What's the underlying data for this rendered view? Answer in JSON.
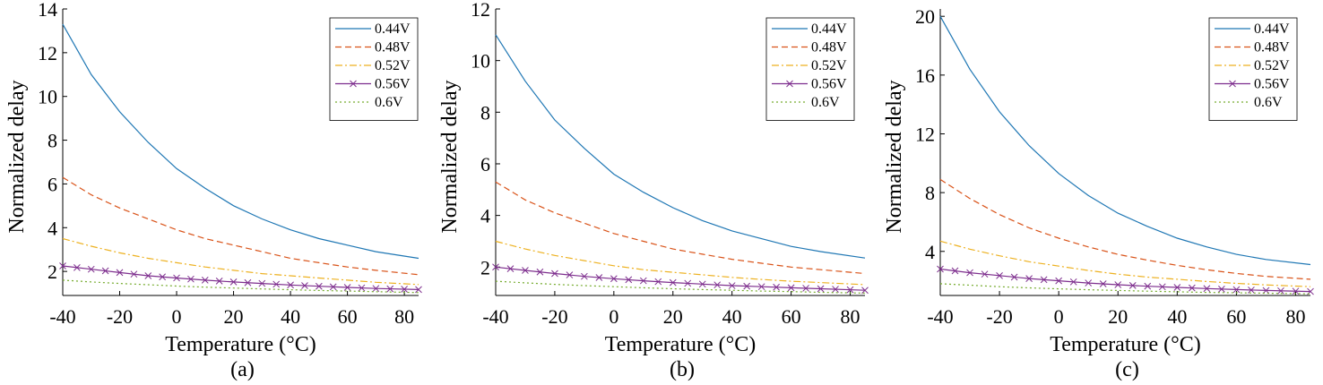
{
  "chart_data": [
    {
      "type": "line",
      "caption": "(a)",
      "xlabel": "Temperature (°C)",
      "ylabel": "Normalized delay",
      "xlim": [
        -40,
        85
      ],
      "ylim": [
        0.9,
        14
      ],
      "xticks": [
        -40,
        -20,
        0,
        20,
        40,
        60,
        80
      ],
      "yticks": [
        2,
        4,
        6,
        8,
        10,
        12,
        14
      ],
      "legend_position": "top-right",
      "x": [
        -40,
        -30,
        -20,
        -10,
        0,
        10,
        20,
        30,
        40,
        50,
        60,
        70,
        85
      ],
      "series": [
        {
          "name": "0.44V",
          "color": "#1f77b4",
          "style": "solid",
          "marker": "",
          "values": [
            13.3,
            11.0,
            9.3,
            7.9,
            6.7,
            5.8,
            5.0,
            4.4,
            3.9,
            3.5,
            3.2,
            2.9,
            2.6
          ]
        },
        {
          "name": "0.48V",
          "color": "#d95319",
          "style": "dash",
          "marker": "",
          "values": [
            6.3,
            5.5,
            4.9,
            4.4,
            3.9,
            3.5,
            3.2,
            2.9,
            2.6,
            2.4,
            2.2,
            2.05,
            1.85
          ]
        },
        {
          "name": "0.52V",
          "color": "#edb120",
          "style": "dashdot",
          "marker": "",
          "values": [
            3.5,
            3.15,
            2.85,
            2.6,
            2.4,
            2.2,
            2.05,
            1.9,
            1.8,
            1.7,
            1.6,
            1.5,
            1.4
          ]
        },
        {
          "name": "0.56V",
          "color": "#7e2f8e",
          "style": "solid",
          "marker": "x",
          "values": [
            2.25,
            2.1,
            1.95,
            1.8,
            1.7,
            1.6,
            1.52,
            1.45,
            1.38,
            1.32,
            1.27,
            1.22,
            1.17
          ]
        },
        {
          "name": "0.6V",
          "color": "#77ac30",
          "style": "dot",
          "marker": "",
          "values": [
            1.6,
            1.52,
            1.45,
            1.39,
            1.33,
            1.28,
            1.24,
            1.2,
            1.16,
            1.13,
            1.1,
            1.07,
            1.03
          ]
        }
      ]
    },
    {
      "type": "line",
      "caption": "(b)",
      "xlabel": "Temperature (°C)",
      "ylabel": "Normalized delay",
      "xlim": [
        -40,
        85
      ],
      "ylim": [
        0.9,
        12
      ],
      "xticks": [
        -40,
        -20,
        0,
        20,
        40,
        60,
        80
      ],
      "yticks": [
        2,
        4,
        6,
        8,
        10,
        12
      ],
      "legend_position": "top-right",
      "x": [
        -40,
        -30,
        -20,
        -10,
        0,
        10,
        20,
        30,
        40,
        50,
        60,
        70,
        85
      ],
      "series": [
        {
          "name": "0.44V",
          "color": "#1f77b4",
          "style": "solid",
          "marker": "",
          "values": [
            11.0,
            9.2,
            7.7,
            6.6,
            5.6,
            4.9,
            4.3,
            3.8,
            3.4,
            3.1,
            2.8,
            2.6,
            2.35
          ]
        },
        {
          "name": "0.48V",
          "color": "#d95319",
          "style": "dash",
          "marker": "",
          "values": [
            5.3,
            4.6,
            4.1,
            3.7,
            3.3,
            3.0,
            2.7,
            2.5,
            2.3,
            2.15,
            2.0,
            1.9,
            1.75
          ]
        },
        {
          "name": "0.52V",
          "color": "#edb120",
          "style": "dashdot",
          "marker": "",
          "values": [
            3.0,
            2.7,
            2.45,
            2.25,
            2.05,
            1.9,
            1.8,
            1.7,
            1.6,
            1.52,
            1.45,
            1.4,
            1.32
          ]
        },
        {
          "name": "0.56V",
          "color": "#7e2f8e",
          "style": "solid",
          "marker": "x",
          "values": [
            2.0,
            1.87,
            1.75,
            1.64,
            1.55,
            1.47,
            1.4,
            1.34,
            1.28,
            1.24,
            1.2,
            1.16,
            1.1
          ]
        },
        {
          "name": "0.6V",
          "color": "#77ac30",
          "style": "dot",
          "marker": "",
          "values": [
            1.45,
            1.39,
            1.33,
            1.28,
            1.24,
            1.2,
            1.16,
            1.13,
            1.1,
            1.07,
            1.05,
            1.02,
            0.99
          ]
        }
      ]
    },
    {
      "type": "line",
      "caption": "(c)",
      "xlabel": "Temperature (°C)",
      "ylabel": "Normalized delay",
      "xlim": [
        -40,
        85
      ],
      "ylim": [
        1.0,
        20.5
      ],
      "xticks": [
        -40,
        -20,
        0,
        20,
        40,
        60,
        80
      ],
      "yticks": [
        4,
        8,
        12,
        16,
        20
      ],
      "legend_position": "top-right",
      "x": [
        -40,
        -30,
        -20,
        -10,
        0,
        10,
        20,
        30,
        40,
        50,
        60,
        70,
        85
      ],
      "series": [
        {
          "name": "0.44V",
          "color": "#1f77b4",
          "style": "solid",
          "marker": "",
          "values": [
            20.0,
            16.4,
            13.5,
            11.2,
            9.3,
            7.8,
            6.6,
            5.7,
            4.9,
            4.3,
            3.8,
            3.45,
            3.1
          ]
        },
        {
          "name": "0.48V",
          "color": "#d95319",
          "style": "dash",
          "marker": "",
          "values": [
            8.9,
            7.6,
            6.5,
            5.6,
            4.9,
            4.3,
            3.8,
            3.4,
            3.05,
            2.75,
            2.5,
            2.3,
            2.1
          ]
        },
        {
          "name": "0.52V",
          "color": "#edb120",
          "style": "dashdot",
          "marker": "",
          "values": [
            4.7,
            4.15,
            3.7,
            3.3,
            3.0,
            2.7,
            2.45,
            2.25,
            2.1,
            1.95,
            1.82,
            1.72,
            1.6
          ]
        },
        {
          "name": "0.56V",
          "color": "#7e2f8e",
          "style": "solid",
          "marker": "x",
          "values": [
            2.8,
            2.55,
            2.35,
            2.15,
            2.0,
            1.85,
            1.73,
            1.63,
            1.55,
            1.47,
            1.4,
            1.34,
            1.27
          ]
        },
        {
          "name": "0.6V",
          "color": "#77ac30",
          "style": "dot",
          "marker": "",
          "values": [
            1.8,
            1.7,
            1.6,
            1.52,
            1.45,
            1.39,
            1.34,
            1.29,
            1.25,
            1.21,
            1.18,
            1.15,
            1.11
          ]
        }
      ]
    }
  ]
}
